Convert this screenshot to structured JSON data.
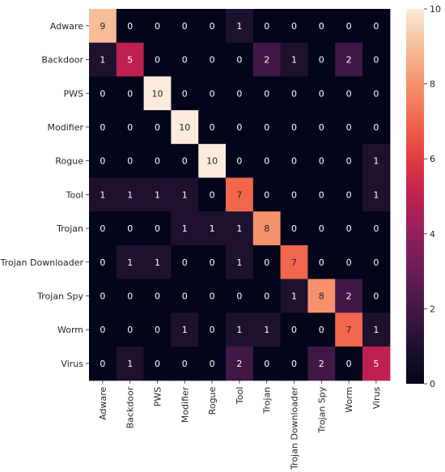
{
  "chart_data": {
    "type": "heatmap",
    "title": "",
    "xlabel": "",
    "ylabel": "",
    "row_labels": [
      "Adware",
      "Backdoor",
      "PWS",
      "Modifier",
      "Rogue",
      "Tool",
      "Trojan",
      "Trojan Downloader",
      "Trojan Spy",
      "Worm",
      "Virus"
    ],
    "col_labels": [
      "Adware",
      "Backdoor",
      "PWS",
      "Modifier",
      "Rogue",
      "Tool",
      "Trojan",
      "Trojan Downloader",
      "Trojan Spy",
      "Worm",
      "Virus"
    ],
    "values": [
      [
        9,
        0,
        0,
        0,
        0,
        1,
        0,
        0,
        0,
        0,
        0
      ],
      [
        1,
        5,
        0,
        0,
        0,
        0,
        2,
        1,
        0,
        2,
        0
      ],
      [
        0,
        0,
        10,
        0,
        0,
        0,
        0,
        0,
        0,
        0,
        0
      ],
      [
        0,
        0,
        0,
        10,
        0,
        0,
        0,
        0,
        0,
        0,
        0
      ],
      [
        0,
        0,
        0,
        0,
        10,
        0,
        0,
        0,
        0,
        0,
        1
      ],
      [
        1,
        1,
        1,
        1,
        0,
        7,
        0,
        0,
        0,
        0,
        1
      ],
      [
        0,
        0,
        0,
        1,
        1,
        1,
        8,
        0,
        0,
        0,
        0
      ],
      [
        0,
        1,
        1,
        0,
        0,
        1,
        0,
        7,
        0,
        0,
        0
      ],
      [
        0,
        0,
        0,
        0,
        0,
        0,
        0,
        1,
        8,
        2,
        0
      ],
      [
        0,
        0,
        0,
        1,
        0,
        1,
        1,
        0,
        0,
        7,
        1
      ],
      [
        0,
        1,
        0,
        0,
        0,
        2,
        0,
        0,
        2,
        0,
        5
      ]
    ],
    "colorbar": {
      "min": 0,
      "max": 10,
      "ticks": [
        0,
        2,
        4,
        6,
        8,
        10
      ],
      "colormap": "rocket"
    }
  }
}
